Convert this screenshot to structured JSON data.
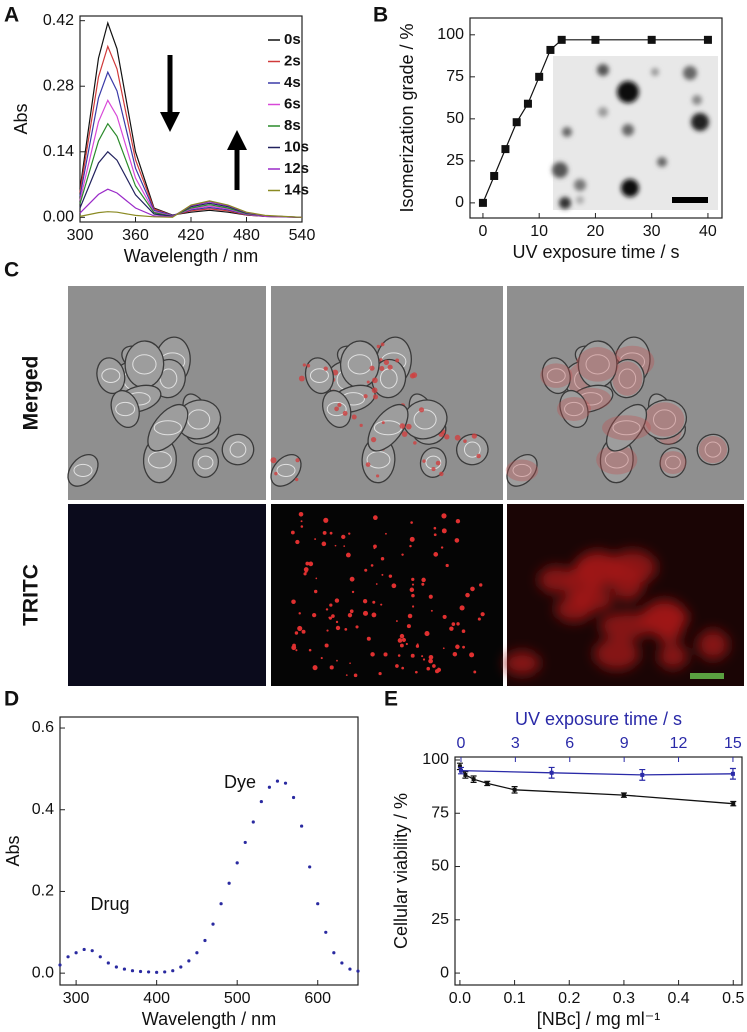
{
  "chart_data": [
    {
      "type": "line",
      "panel_label": "A",
      "xlabel": "Wavelength / nm",
      "ylabel": "Abs",
      "x": [
        300,
        320,
        330,
        340,
        360,
        380,
        400,
        420,
        440,
        460,
        480,
        500,
        540
      ],
      "series": [
        {
          "name": "0s",
          "color": "#111111",
          "values": [
            0.06,
            0.34,
            0.415,
            0.36,
            0.14,
            0.02,
            0.005,
            0.011,
            0.015,
            0.011,
            0.005,
            0.002,
            0
          ]
        },
        {
          "name": "2s",
          "color": "#d03a3a",
          "values": [
            0.053,
            0.3,
            0.365,
            0.317,
            0.123,
            0.018,
            0.004,
            0.014,
            0.018,
            0.014,
            0.005,
            0.002,
            0
          ]
        },
        {
          "name": "4s",
          "color": "#3a3aa8",
          "values": [
            0.045,
            0.255,
            0.31,
            0.27,
            0.105,
            0.015,
            0.004,
            0.016,
            0.021,
            0.016,
            0.006,
            0.002,
            0
          ]
        },
        {
          "name": "6s",
          "color": "#d848d8",
          "values": [
            0.036,
            0.204,
            0.25,
            0.216,
            0.084,
            0.012,
            0.003,
            0.018,
            0.024,
            0.018,
            0.007,
            0.002,
            0
          ]
        },
        {
          "name": "8s",
          "color": "#2a8a2a",
          "values": [
            0.029,
            0.163,
            0.2,
            0.173,
            0.067,
            0.01,
            0.002,
            0.02,
            0.027,
            0.02,
            0.008,
            0.003,
            0
          ]
        },
        {
          "name": "10s",
          "color": "#22225e",
          "values": [
            0.02,
            0.116,
            0.14,
            0.122,
            0.048,
            0.007,
            0.002,
            0.023,
            0.03,
            0.023,
            0.009,
            0.003,
            0
          ]
        },
        {
          "name": "12s",
          "color": "#9a2ac8",
          "values": [
            0.009,
            0.049,
            0.06,
            0.052,
            0.02,
            0.003,
            0.001,
            0.025,
            0.033,
            0.025,
            0.01,
            0.003,
            0
          ]
        },
        {
          "name": "14s",
          "color": "#8a8a22",
          "values": [
            0.002,
            0.01,
            0.012,
            0.011,
            0.004,
            0.001,
            0,
            0.026,
            0.035,
            0.026,
            0.011,
            0.004,
            0
          ]
        }
      ],
      "xlim": [
        300,
        540
      ],
      "ylim": [
        -0.01,
        0.43
      ],
      "xticks": [
        300,
        360,
        420,
        480,
        540
      ],
      "yticks": [
        {
          "value": 0,
          "label": "0.00"
        },
        0.14,
        0.28,
        0.42
      ],
      "legend": "upper right"
    },
    {
      "type": "line",
      "panel_label": "B",
      "xlabel": "UV exposure time / s",
      "ylabel": "Isomerization grade / %",
      "marker": "square",
      "x": [
        0,
        2,
        4,
        6,
        8,
        10,
        12,
        14,
        20,
        30,
        40
      ],
      "series": [
        {
          "color": "#111111",
          "values": [
            0,
            16,
            32,
            48,
            59,
            75,
            91,
            97,
            97,
            97,
            97
          ]
        }
      ],
      "xlim": [
        -2.3,
        42.5
      ],
      "ylim": [
        -9,
        110
      ],
      "xticks": [
        0,
        10,
        20,
        30,
        40
      ],
      "yticks": [
        0,
        25,
        50,
        75,
        100
      ]
    },
    {
      "type": "scatter",
      "panel_label": "D",
      "xlabel": "Wavelength / nm",
      "ylabel": "Abs",
      "annotations": [
        "Drug",
        "Dye"
      ],
      "color": "#2a2aa0",
      "x": [
        280,
        290,
        300,
        310,
        320,
        330,
        340,
        350,
        360,
        370,
        380,
        390,
        400,
        410,
        420,
        430,
        440,
        450,
        460,
        470,
        480,
        490,
        500,
        510,
        520,
        530,
        540,
        550,
        560,
        570,
        580,
        590,
        600,
        610,
        620,
        630,
        640,
        650
      ],
      "values": [
        0.02,
        0.04,
        0.05,
        0.058,
        0.055,
        0.04,
        0.025,
        0.015,
        0.01,
        0.006,
        0.004,
        0.003,
        0.002,
        0.003,
        0.006,
        0.015,
        0.03,
        0.05,
        0.08,
        0.12,
        0.17,
        0.22,
        0.27,
        0.32,
        0.37,
        0.42,
        0.455,
        0.47,
        0.465,
        0.43,
        0.36,
        0.26,
        0.17,
        0.1,
        0.05,
        0.025,
        0.01,
        0.005
      ],
      "xlim": [
        280,
        650
      ],
      "ylim": [
        -0.029,
        0.627
      ],
      "xticks": [
        300,
        400,
        500,
        600
      ],
      "yticks": [
        {
          "value": 0,
          "label": "0.0"
        },
        0.2,
        0.4,
        0.6
      ]
    },
    {
      "type": "errorline",
      "panel_label": "E",
      "xlabel": "[NBc] / mg ml⁻¹",
      "x2label": "UV exposure time / s",
      "ylabel": "Cellular viability / %",
      "series": [
        {
          "color": "#111111",
          "x": [
            0,
            0.01,
            0.025,
            0.05,
            0.1,
            0.3,
            0.5
          ],
          "values": [
            97,
            93,
            91,
            89,
            86,
            83.5,
            79.5
          ],
          "errors": [
            1.5,
            1.5,
            1.5,
            1,
            1.5,
            1,
            1
          ]
        },
        {
          "color": "#2a2aa8",
          "axis": "x2",
          "x": [
            0,
            5,
            10,
            15
          ],
          "values": [
            95,
            94,
            93,
            93.5
          ],
          "errors": [
            1.5,
            2.5,
            2.5,
            2.5
          ]
        }
      ],
      "xlim": [
        -0.009,
        0.516
      ],
      "x2lim": [
        -0.33,
        15.5
      ],
      "ylim": [
        -5.6,
        101.4
      ],
      "xticks": [
        {
          "value": 0,
          "label": "0.0"
        },
        0.1,
        0.2,
        0.3,
        0.4,
        0.5
      ],
      "x2ticks": [
        0,
        3,
        6,
        9,
        12,
        15
      ],
      "yticks": [
        0,
        25,
        50,
        75,
        100
      ]
    }
  ],
  "panel_c": {
    "label": "C",
    "row_labels": [
      "Merged",
      "TRITC"
    ]
  }
}
